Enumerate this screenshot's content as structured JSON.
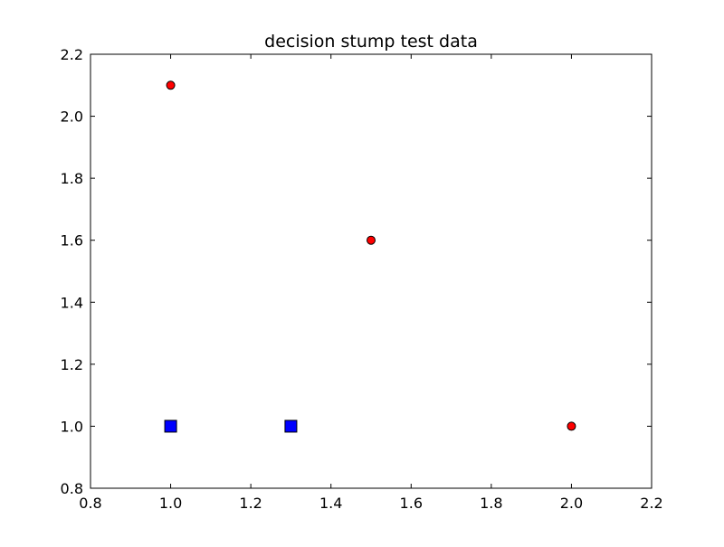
{
  "chart_data": {
    "type": "scatter",
    "title": "decision stump test data",
    "xlabel": "",
    "ylabel": "",
    "xlim": [
      0.8,
      2.2
    ],
    "ylim": [
      0.8,
      2.2
    ],
    "xticks": [
      "0.8",
      "1.0",
      "1.2",
      "1.4",
      "1.6",
      "1.8",
      "2.0",
      "2.2"
    ],
    "yticks": [
      "0.8",
      "1.0",
      "1.2",
      "1.4",
      "1.6",
      "1.8",
      "2.0",
      "2.2"
    ],
    "grid": false,
    "series": [
      {
        "marker": "circle",
        "color": "#ff0000",
        "points": [
          {
            "x": 1.0,
            "y": 2.1
          },
          {
            "x": 1.5,
            "y": 1.6
          },
          {
            "x": 2.0,
            "y": 1.0
          }
        ]
      },
      {
        "marker": "square",
        "color": "#0000ff",
        "points": [
          {
            "x": 1.0,
            "y": 1.0
          },
          {
            "x": 1.3,
            "y": 1.0
          }
        ]
      }
    ]
  }
}
